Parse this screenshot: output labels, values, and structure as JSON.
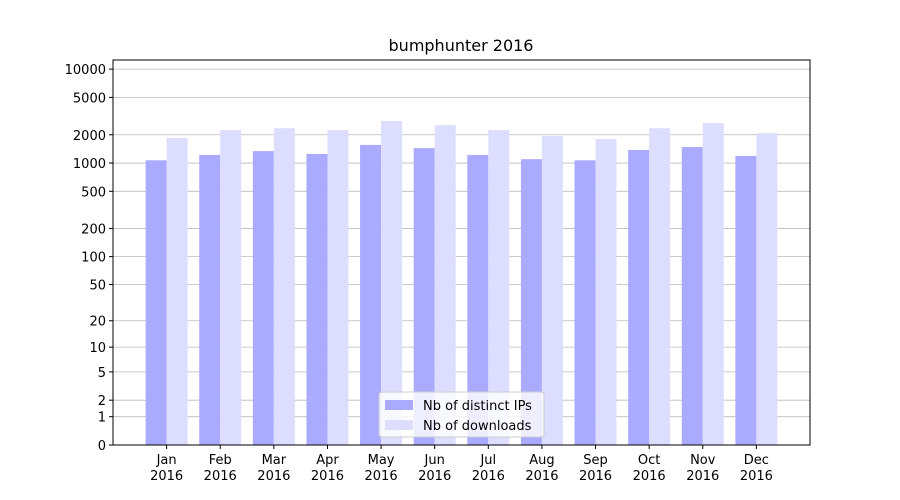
{
  "chart_data": {
    "type": "bar",
    "title": "bumphunter 2016",
    "categories": [
      "Jan\n2016",
      "Feb\n2016",
      "Mar\n2016",
      "Apr\n2016",
      "May\n2016",
      "Jun\n2016",
      "Jul\n2016",
      "Aug\n2016",
      "Sep\n2016",
      "Oct\n2016",
      "Nov\n2016",
      "Dec\n2016"
    ],
    "series": [
      {
        "name": "Nb of distinct IPs",
        "color": "#aaaaff",
        "values": [
          1070,
          1220,
          1340,
          1250,
          1560,
          1440,
          1220,
          1100,
          1070,
          1380,
          1480,
          1190
        ]
      },
      {
        "name": "Nb of downloads",
        "color": "#ddddff",
        "values": [
          1850,
          2240,
          2350,
          2240,
          2800,
          2530,
          2240,
          1940,
          1800,
          2350,
          2660,
          2080
        ]
      }
    ],
    "y_scale": "log1p",
    "ylim": [
      0,
      12500
    ],
    "yticks": [
      0,
      1,
      2,
      5,
      10,
      20,
      50,
      100,
      200,
      500,
      1000,
      2000,
      5000,
      10000
    ],
    "grid": true,
    "legend_position": "lower center"
  }
}
